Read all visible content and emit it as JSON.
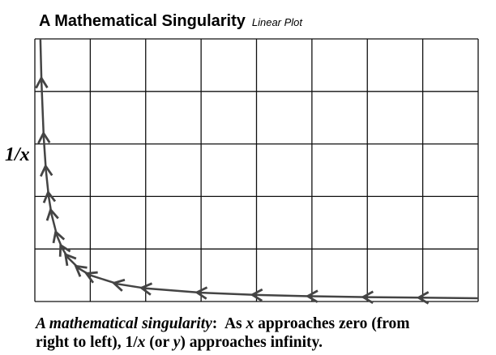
{
  "chart_data": {
    "type": "line",
    "title": "A Mathematical Singularity",
    "subtitle": "Linear Plot",
    "y_label": "1/x",
    "x": [
      4,
      3.5,
      3,
      2.5,
      2,
      1.5,
      1,
      0.75,
      0.5,
      0.4,
      0.3,
      0.25,
      0.2,
      0.15,
      0.125,
      0.1,
      0.08,
      0.06,
      0.05
    ],
    "values": [
      0.25,
      0.29,
      0.33,
      0.4,
      0.5,
      0.67,
      1,
      1.33,
      2,
      2.5,
      3.33,
      4,
      5,
      6.67,
      8,
      10,
      12.5,
      16.7,
      20
    ],
    "color": "#444444",
    "xlim": [
      0,
      4
    ],
    "ylim": [
      0,
      20
    ],
    "xticks": [
      0,
      0.5,
      1,
      1.5,
      2,
      2.5,
      3,
      3.5,
      4
    ],
    "yticks": [
      0,
      4,
      8,
      12,
      16,
      20
    ],
    "grid": true,
    "caption_lines": [
      [
        {
          "text": "A mathematical singularity",
          "italic": true
        },
        {
          "text": ":  As ",
          "italic": false
        },
        {
          "text": "x",
          "italic": true
        },
        {
          "text": " approaches zero (from",
          "italic": false
        }
      ],
      [
        {
          "text": "right to left), 1/",
          "italic": false
        },
        {
          "text": "x",
          "italic": true
        },
        {
          "text": " (or ",
          "italic": false
        },
        {
          "text": "y",
          "italic": true
        },
        {
          "text": ") approaches infinity.",
          "italic": false
        }
      ]
    ]
  }
}
